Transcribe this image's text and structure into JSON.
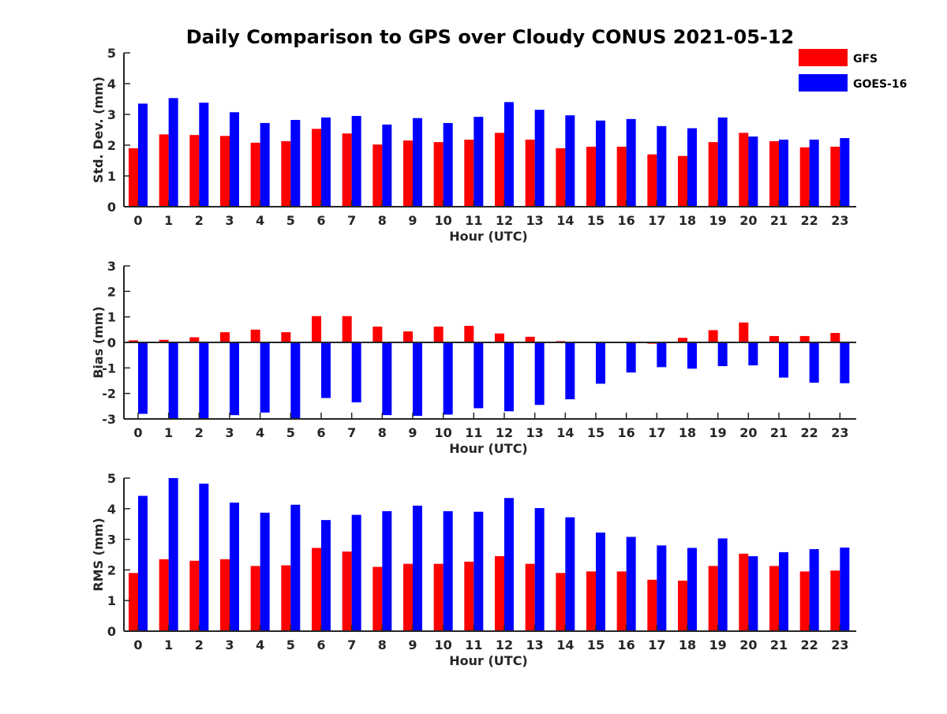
{
  "chart_data": {
    "type": "bar",
    "title": "Daily Comparison to GPS over Cloudy CONUS 2021-05-12",
    "legend": {
      "placement": "top-right",
      "entries": [
        "GFS",
        "GOES-16"
      ]
    },
    "colors": {
      "GFS": "#ff0000",
      "GOES-16": "#0000ff"
    },
    "grid": false,
    "categories": [
      "0",
      "1",
      "2",
      "3",
      "4",
      "5",
      "6",
      "7",
      "8",
      "9",
      "10",
      "11",
      "12",
      "13",
      "14",
      "15",
      "16",
      "17",
      "18",
      "19",
      "20",
      "21",
      "22",
      "23"
    ],
    "panels": [
      {
        "name": "std-dev",
        "ylabel": "Std. Dev. (mm)",
        "xlabel": "Hour (UTC)",
        "ylim": [
          0,
          5
        ],
        "yticks": [
          "0",
          "1",
          "2",
          "3",
          "4",
          "5"
        ],
        "series": [
          {
            "name": "GFS",
            "values": [
              1.9,
              2.35,
              2.33,
              2.3,
              2.08,
              2.13,
              2.53,
              2.38,
              2.02,
              2.15,
              2.1,
              2.18,
              2.4,
              2.18,
              1.9,
              1.95,
              1.95,
              1.7,
              1.65,
              2.1,
              2.4,
              2.13,
              1.93,
              1.95
            ]
          },
          {
            "name": "GOES-16",
            "values": [
              3.35,
              3.53,
              3.38,
              3.07,
              2.72,
              2.82,
              2.9,
              2.95,
              2.67,
              2.88,
              2.72,
              2.92,
              3.4,
              3.15,
              2.97,
              2.8,
              2.85,
              2.62,
              2.55,
              2.9,
              2.28,
              2.18,
              2.18,
              2.23
            ]
          }
        ]
      },
      {
        "name": "bias",
        "ylabel": "Bias (mm)",
        "xlabel": "Hour (UTC)",
        "ylim": [
          -3,
          3
        ],
        "yticks": [
          "-3",
          "-2",
          "-1",
          "0",
          "1",
          "2",
          "3"
        ],
        "zero_line": true,
        "series": [
          {
            "name": "GFS",
            "values": [
              0.08,
              0.1,
              0.2,
              0.4,
              0.5,
              0.4,
              1.03,
              1.03,
              0.62,
              0.43,
              0.62,
              0.65,
              0.35,
              0.22,
              0.05,
              0.03,
              -0.02,
              -0.05,
              0.18,
              0.48,
              0.78,
              0.25,
              0.25,
              0.37
            ]
          },
          {
            "name": "GOES-16",
            "values": [
              -2.8,
              -3.0,
              -3.0,
              -2.85,
              -2.75,
              -3.0,
              -2.18,
              -2.35,
              -2.85,
              -2.88,
              -2.83,
              -2.58,
              -2.7,
              -2.45,
              -2.23,
              -1.62,
              -1.18,
              -0.97,
              -1.03,
              -0.93,
              -0.9,
              -1.38,
              -1.58,
              -1.6
            ]
          }
        ]
      },
      {
        "name": "rms",
        "ylabel": "RMS (mm)",
        "xlabel": "Hour (UTC)",
        "ylim": [
          0,
          5
        ],
        "yticks": [
          "0",
          "1",
          "2",
          "3",
          "4",
          "5"
        ],
        "series": [
          {
            "name": "GFS",
            "values": [
              1.9,
              2.35,
              2.3,
              2.35,
              2.13,
              2.15,
              2.72,
              2.6,
              2.1,
              2.2,
              2.2,
              2.27,
              2.45,
              2.2,
              1.9,
              1.95,
              1.95,
              1.68,
              1.65,
              2.13,
              2.53,
              2.13,
              1.95,
              1.98
            ]
          },
          {
            "name": "GOES-16",
            "values": [
              4.42,
              5.0,
              4.82,
              4.2,
              3.87,
              4.13,
              3.63,
              3.8,
              3.92,
              4.1,
              3.92,
              3.9,
              4.35,
              4.02,
              3.72,
              3.22,
              3.08,
              2.8,
              2.72,
              3.03,
              2.45,
              2.58,
              2.68,
              2.73
            ]
          }
        ]
      }
    ]
  }
}
